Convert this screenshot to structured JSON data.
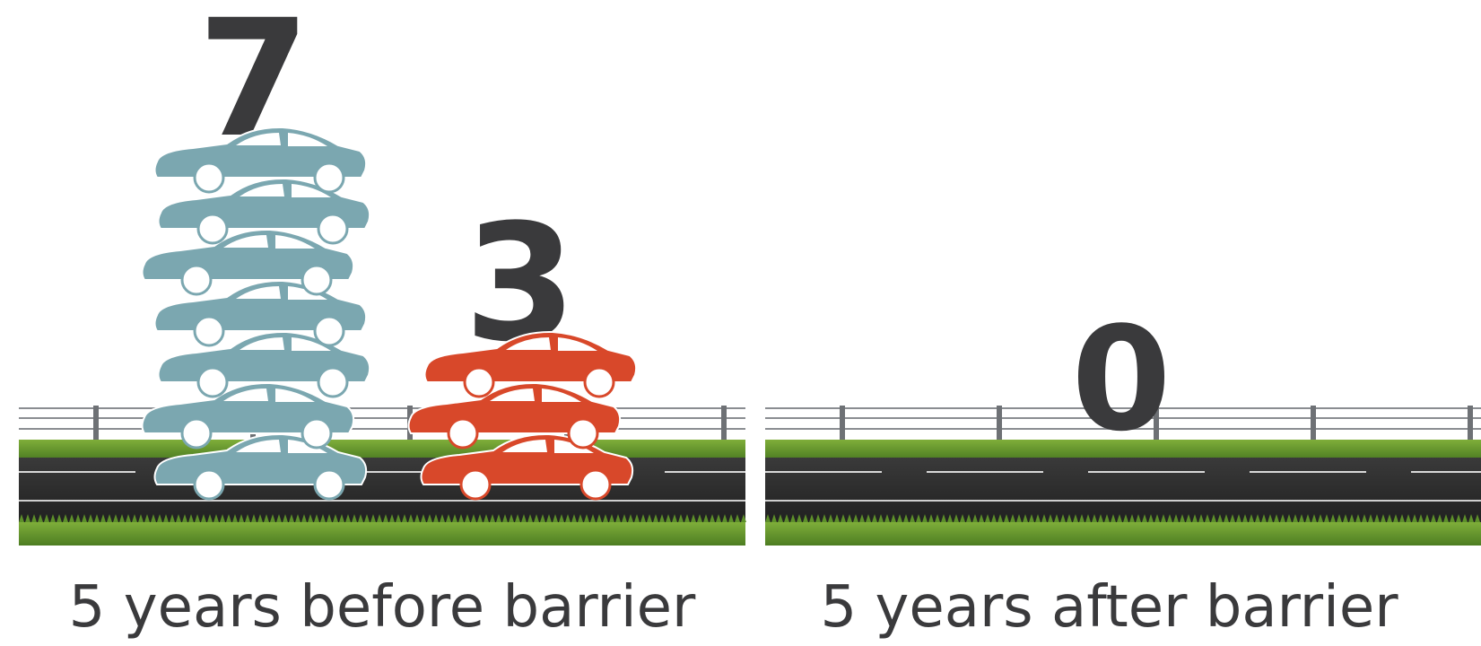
{
  "chart_data": {
    "type": "pictograph",
    "panels": [
      {
        "label": "5 years before barrier",
        "stacks": [
          {
            "value": 7,
            "color": "#7ba7b0"
          },
          {
            "value": 3,
            "color": "#d8482a"
          }
        ]
      },
      {
        "label": "5 years after barrier",
        "stacks": [
          {
            "value": 0
          }
        ]
      }
    ]
  }
}
